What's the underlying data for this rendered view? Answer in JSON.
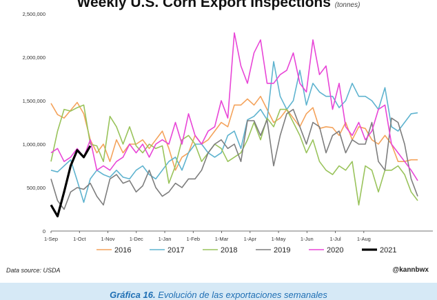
{
  "caption": {
    "label": "Gráfica 16.",
    "text": "Evolución de las exportaciones semanales"
  },
  "footer": {
    "source": "Data source: USDA",
    "handle": "@kannbwx"
  },
  "chart_data": {
    "type": "line",
    "title": "Weekly U.S. Corn Export Inspections",
    "title_unit": "(tonnes)",
    "xlabel": "",
    "ylabel": "",
    "x_ticks": [
      "1-Sep",
      "1-Oct",
      "1-Nov",
      "1-Dec",
      "1-Jan",
      "1-Feb",
      "1-Mar",
      "1-Apr",
      "1-May",
      "1-Jun",
      "1-Jul",
      "1-Aug"
    ],
    "y_ticks": [
      "0",
      "500,000",
      "1,000,000",
      "1,500,000",
      "2,000,000",
      "2,500,000"
    ],
    "ylim": [
      0,
      2500000
    ],
    "grid": "none",
    "legend_position": "bottom",
    "x_unit": "weeks since 1-Sep",
    "series": [
      {
        "name": "2016",
        "color": "#f4a25a",
        "width": 1.6,
        "values": [
          1470000,
          1340000,
          1300000,
          1390000,
          1480000,
          1350000,
          1050000,
          900000,
          1000000,
          800000,
          1050000,
          900000,
          1000000,
          1000000,
          1050000,
          950000,
          1050000,
          1150000,
          950000,
          700000,
          850000,
          900000,
          1100000,
          1000000,
          1050000,
          1150000,
          1250000,
          1200000,
          1450000,
          1450000,
          1520000,
          1450000,
          1550000,
          1400000,
          1250000,
          1300000,
          1400000,
          1300000,
          1200000,
          1350000,
          1420000,
          1180000,
          1200000,
          1190000,
          1100000,
          1250000,
          1050000,
          1200000,
          1180000,
          1050000,
          1000000,
          1100000,
          1000000,
          800000,
          800000,
          820000,
          820000
        ]
      },
      {
        "name": "2017",
        "color": "#5eb3cf",
        "width": 1.6,
        "values": [
          700000,
          680000,
          750000,
          820000,
          580000,
          330000,
          600000,
          700000,
          650000,
          620000,
          700000,
          620000,
          600000,
          700000,
          750000,
          650000,
          600000,
          700000,
          800000,
          850000,
          700000,
          900000,
          1000000,
          1000000,
          900000,
          850000,
          900000,
          1100000,
          1150000,
          950000,
          1280000,
          1320000,
          1400000,
          1280000,
          1950000,
          1550000,
          1400000,
          1500000,
          1850000,
          1450000,
          1700000,
          1600000,
          1550000,
          1550000,
          1420000,
          1500000,
          1700000,
          1550000,
          1550000,
          1500000,
          1400000,
          1650000,
          1200000,
          1150000,
          1250000,
          1350000,
          1360000
        ]
      },
      {
        "name": "2018",
        "color": "#99c35b",
        "width": 1.6,
        "values": [
          800000,
          1150000,
          1400000,
          1380000,
          1420000,
          1450000,
          1000000,
          980000,
          800000,
          1320000,
          1200000,
          1000000,
          1200000,
          980000,
          900000,
          1000000,
          950000,
          980000,
          550000,
          750000,
          1050000,
          1100000,
          1000000,
          800000,
          900000,
          1000000,
          950000,
          800000,
          850000,
          900000,
          1050000,
          1250000,
          1050000,
          1300000,
          1200000,
          1400000,
          1400000,
          1250000,
          1100000,
          900000,
          1050000,
          800000,
          700000,
          650000,
          750000,
          700000,
          800000,
          300000,
          750000,
          700000,
          450000,
          700000,
          700000,
          750000,
          650000,
          450000,
          350000
        ]
      },
      {
        "name": "2019",
        "color": "#7d7d7d",
        "width": 1.6,
        "values": [
          600000,
          350000,
          250000,
          450000,
          500000,
          480000,
          550000,
          400000,
          300000,
          600000,
          650000,
          550000,
          580000,
          450000,
          520000,
          700000,
          500000,
          400000,
          450000,
          550000,
          500000,
          600000,
          600000,
          700000,
          900000,
          1000000,
          1050000,
          950000,
          1000000,
          800000,
          1270000,
          1270000,
          1100000,
          1280000,
          750000,
          1100000,
          1350000,
          1400000,
          1200000,
          1000000,
          1250000,
          1200000,
          900000,
          1100000,
          1150000,
          900000,
          1050000,
          1000000,
          1000000,
          1250000,
          800000,
          700000,
          1300000,
          1250000,
          1000000,
          600000,
          400000
        ]
      },
      {
        "name": "2020",
        "color": "#e845d7",
        "width": 1.6,
        "values": [
          900000,
          950000,
          800000,
          850000,
          950000,
          850000,
          1050000,
          700000,
          750000,
          700000,
          800000,
          850000,
          1000000,
          900000,
          1000000,
          850000,
          1000000,
          1050000,
          1000000,
          1250000,
          1000000,
          1350000,
          1100000,
          1000000,
          1150000,
          1200000,
          1500000,
          1300000,
          2280000,
          1900000,
          1700000,
          2050000,
          2200000,
          1700000,
          1700000,
          1800000,
          1850000,
          2050000,
          1700000,
          1600000,
          2200000,
          1800000,
          1900000,
          1400000,
          1700000,
          1200000,
          1100000,
          1250000,
          1050000,
          1150000,
          1400000,
          1450000,
          1000000,
          900000,
          800000,
          700000,
          580000
        ]
      },
      {
        "name": "2021",
        "color": "#000000",
        "width": 3.2,
        "values": [
          300000,
          170000,
          450000,
          750000,
          930000,
          850000,
          980000
        ]
      }
    ]
  }
}
